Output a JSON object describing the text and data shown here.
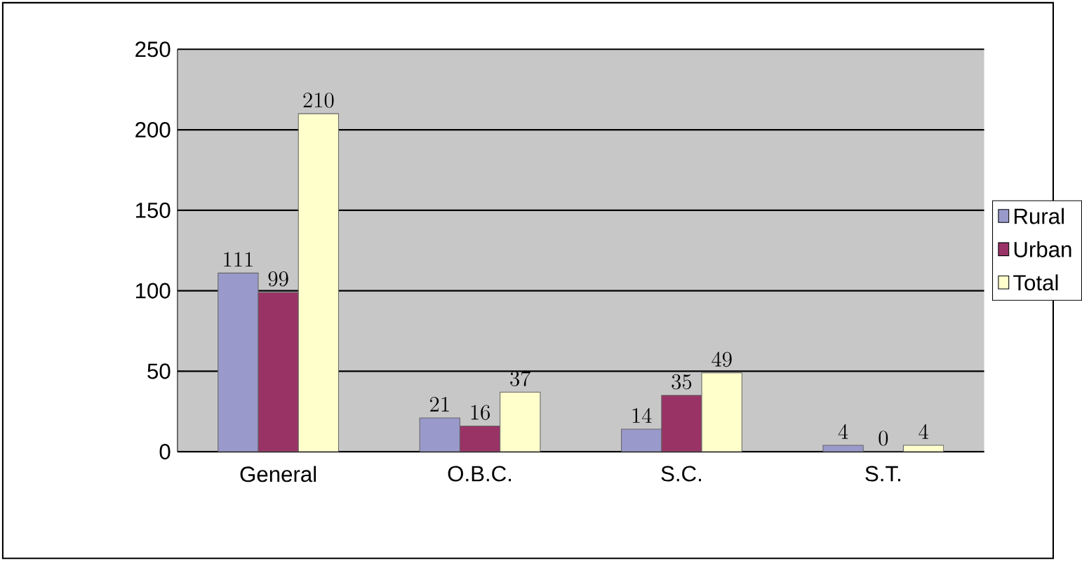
{
  "chart_data": {
    "type": "bar",
    "categories": [
      "General",
      "O.B.C.",
      "S.C.",
      "S.T."
    ],
    "series": [
      {
        "name": "Rural",
        "color": "#9999cc",
        "values": [
          111,
          21,
          14,
          4
        ]
      },
      {
        "name": "Urban",
        "color": "#993366",
        "values": [
          99,
          16,
          35,
          0
        ]
      },
      {
        "name": "Total",
        "color": "#ffffcc",
        "values": [
          210,
          37,
          49,
          4
        ]
      }
    ],
    "ylim": [
      0,
      250
    ],
    "yticks": [
      0,
      50,
      100,
      150,
      200,
      250
    ],
    "grid": "y",
    "legend": "right",
    "data_labels": true
  }
}
